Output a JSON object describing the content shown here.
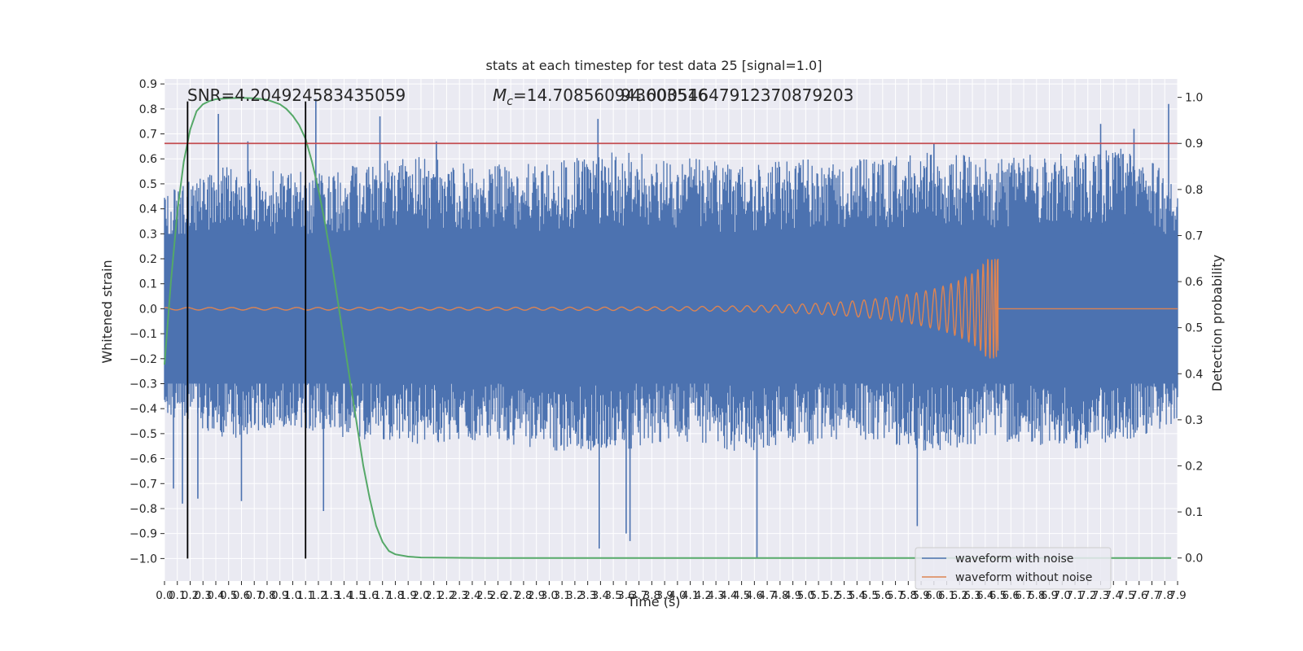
{
  "chart_data": {
    "type": "line",
    "title": "stats at each timestep for test data 25 [signal=1.0]",
    "xlabel": "Time (s)",
    "ylabel": "Whitened strain",
    "y2label": "Detection probability",
    "xlim": [
      0.0,
      7.9
    ],
    "ylim": [
      -1.09,
      0.92
    ],
    "y2lim": [
      -0.05,
      1.04
    ],
    "x_tick_step": 0.1,
    "x_tick_count": 80,
    "y_ticks": [
      0.9,
      0.8,
      0.7,
      0.6,
      0.5,
      0.4,
      0.3,
      0.2,
      0.1,
      0.0,
      -0.1,
      -0.2,
      -0.3,
      -0.4,
      -0.5,
      -0.6,
      -0.7,
      -0.8,
      -0.9,
      -1.0
    ],
    "y_tick_labels": [
      "0.9",
      "0.8",
      "0.7",
      "0.6",
      "0.5",
      "0.4",
      "0.3",
      "0.2",
      "0.1",
      "0.0",
      "−0.1",
      "−0.2",
      "−0.3",
      "−0.4",
      "−0.5",
      "−0.6",
      "−0.7",
      "−0.8",
      "−0.9",
      "−1.0"
    ],
    "y2_ticks": [
      1.0,
      0.9,
      0.8,
      0.7,
      0.6,
      0.5,
      0.4,
      0.3,
      0.2,
      0.1,
      0.0
    ],
    "y2_tick_labels": [
      "1.0",
      "0.9",
      "0.8",
      "0.7",
      "0.6",
      "0.5",
      "0.4",
      "0.3",
      "0.2",
      "0.1",
      "0.0"
    ],
    "grid": true,
    "annotations": {
      "snr": "SNR=4.204924583435059",
      "mc_symbol": "M",
      "mc_subscript": "c",
      "mc_value": "=14.708560943603516",
      "mc_overlap": "94.00054647912370879203"
    },
    "threshold": {
      "axis": "right",
      "y": 0.9,
      "color": "#c44e52"
    },
    "window_lines": {
      "x": [
        0.18,
        1.1
      ],
      "y_range": [
        -1.0,
        0.83
      ],
      "color": "#000000"
    },
    "noise_envelope": {
      "t": [
        0.0,
        0.5,
        1.0,
        1.5,
        2.0,
        2.5,
        3.0,
        3.5,
        4.0,
        4.5,
        5.0,
        5.5,
        6.0,
        6.5,
        7.0,
        7.5,
        7.9
      ],
      "upper": [
        0.45,
        0.55,
        0.52,
        0.55,
        0.58,
        0.55,
        0.56,
        0.6,
        0.58,
        0.55,
        0.57,
        0.58,
        0.6,
        0.58,
        0.6,
        0.62,
        0.5
      ],
      "lower": [
        -0.4,
        -0.5,
        -0.45,
        -0.5,
        -0.52,
        -0.5,
        -0.55,
        -0.55,
        -0.5,
        -0.55,
        -0.52,
        -0.5,
        -0.55,
        -0.5,
        -0.55,
        -0.5,
        -0.45
      ]
    },
    "noise_spikes": [
      {
        "t": 0.07,
        "y": -0.72
      },
      {
        "t": 0.14,
        "y": -0.78
      },
      {
        "t": 0.26,
        "y": -0.76
      },
      {
        "t": 0.6,
        "y": -0.77
      },
      {
        "t": 0.65,
        "y": 0.67
      },
      {
        "t": 0.42,
        "y": 0.78
      },
      {
        "t": 1.18,
        "y": 0.84
      },
      {
        "t": 1.24,
        "y": -0.81
      },
      {
        "t": 1.68,
        "y": 0.77
      },
      {
        "t": 3.39,
        "y": -0.96
      },
      {
        "t": 3.38,
        "y": 0.76
      },
      {
        "t": 3.6,
        "y": -0.9
      },
      {
        "t": 3.63,
        "y": -0.93
      },
      {
        "t": 4.62,
        "y": -1.0
      },
      {
        "t": 5.87,
        "y": -0.87
      },
      {
        "t": 6.0,
        "y": 0.66
      },
      {
        "t": 7.3,
        "y": 0.74
      },
      {
        "t": 7.83,
        "y": 0.82
      },
      {
        "t": 7.56,
        "y": 0.72
      },
      {
        "t": 2.12,
        "y": 0.67
      }
    ],
    "clean_waveform": {
      "t_start": 0.0,
      "t_merger": 6.5,
      "t_end": 7.9,
      "peak_upper": 0.2,
      "peak_lower": -0.15,
      "early_amplitude": 0.005
    },
    "detection_probability": {
      "x": [
        0.0,
        0.05,
        0.1,
        0.15,
        0.2,
        0.25,
        0.3,
        0.35,
        0.4,
        0.5,
        0.6,
        0.7,
        0.8,
        0.9,
        0.95,
        1.0,
        1.05,
        1.1,
        1.15,
        1.2,
        1.25,
        1.3,
        1.35,
        1.4,
        1.45,
        1.5,
        1.55,
        1.6,
        1.65,
        1.7,
        1.75,
        1.8,
        1.9,
        2.0,
        2.5,
        7.85
      ],
      "y": [
        0.42,
        0.6,
        0.75,
        0.86,
        0.93,
        0.97,
        0.985,
        0.992,
        0.996,
        0.998,
        0.999,
        0.998,
        0.995,
        0.985,
        0.975,
        0.96,
        0.94,
        0.91,
        0.86,
        0.8,
        0.73,
        0.65,
        0.56,
        0.47,
        0.38,
        0.29,
        0.2,
        0.13,
        0.07,
        0.035,
        0.015,
        0.008,
        0.003,
        0.001,
        0.0,
        0.0
      ]
    },
    "series": [
      {
        "name": "waveform with noise",
        "color": "#4c72b0"
      },
      {
        "name": "waveform without noise",
        "color": "#dd8452"
      }
    ],
    "prob_color": "#55a868",
    "legend_position": "lower-right"
  }
}
